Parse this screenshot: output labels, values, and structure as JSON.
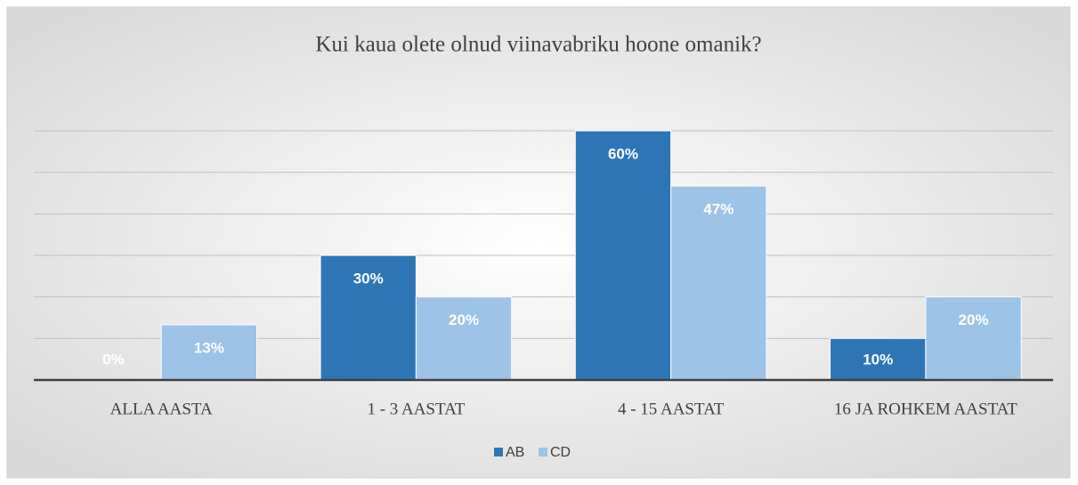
{
  "chart_data": {
    "type": "bar",
    "title": "Kui kaua olete olnud viinavabriku hoone omanik?",
    "categories": [
      "ALLA AASTA",
      "1 - 3 AASTAT",
      "4 - 15 AASTAT",
      "16 JA ROHKEM AASTAT"
    ],
    "series": [
      {
        "name": "AB",
        "color": "#2e75b6",
        "values": [
          0,
          30,
          60,
          10
        ],
        "value_labels": [
          "0%",
          "30%",
          "60%",
          "10%"
        ]
      },
      {
        "name": "CD",
        "color": "#9dc3e6",
        "values": [
          13.3,
          20,
          46.7,
          20
        ],
        "value_labels": [
          "13%",
          "20%",
          "47%",
          "20%"
        ]
      }
    ],
    "ylim": [
      0,
      60
    ],
    "yticks": [
      0,
      10,
      20,
      30,
      40,
      50,
      60
    ],
    "grid": true,
    "legend": "bottom"
  }
}
